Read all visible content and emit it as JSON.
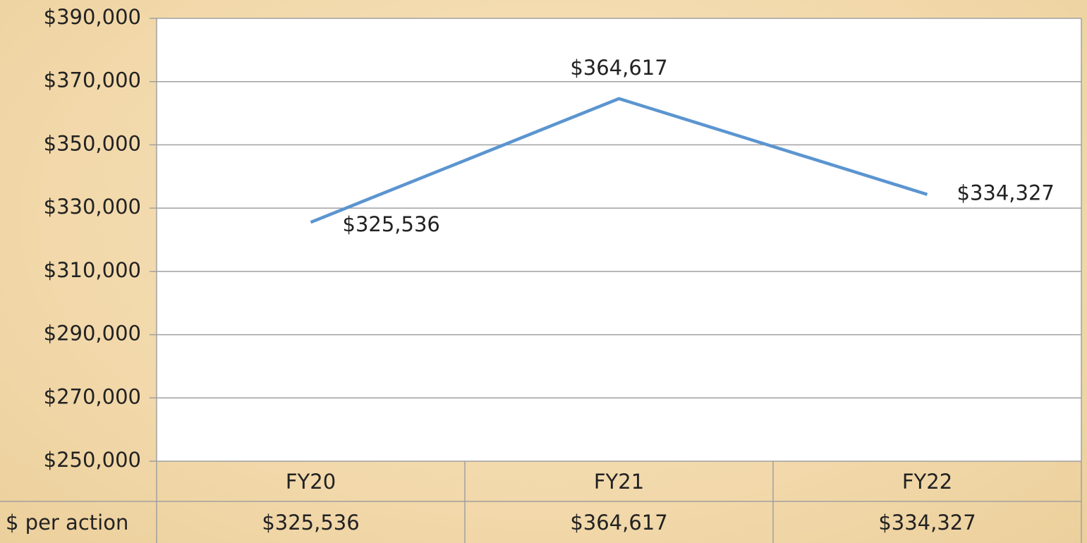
{
  "chart_data": {
    "type": "line",
    "categories": [
      "FY20",
      "FY21",
      "FY22"
    ],
    "series": [
      {
        "name": "$ per action",
        "color": "#5b95d0",
        "values": [
          325536,
          364617,
          334327
        ],
        "value_labels": [
          "$325,536",
          "$364,617",
          "$334,327"
        ]
      }
    ],
    "ylim": [
      250000,
      390000
    ],
    "yticks": [
      {
        "value": 250000,
        "label": "$250,000"
      },
      {
        "value": 270000,
        "label": "$270,000"
      },
      {
        "value": 290000,
        "label": "$290,000"
      },
      {
        "value": 310000,
        "label": "$310,000"
      },
      {
        "value": 330000,
        "label": "$330,000"
      },
      {
        "value": 350000,
        "label": "$350,000"
      },
      {
        "value": 370000,
        "label": "$370,000"
      },
      {
        "value": 390000,
        "label": "$390,000"
      }
    ],
    "grid": true
  }
}
